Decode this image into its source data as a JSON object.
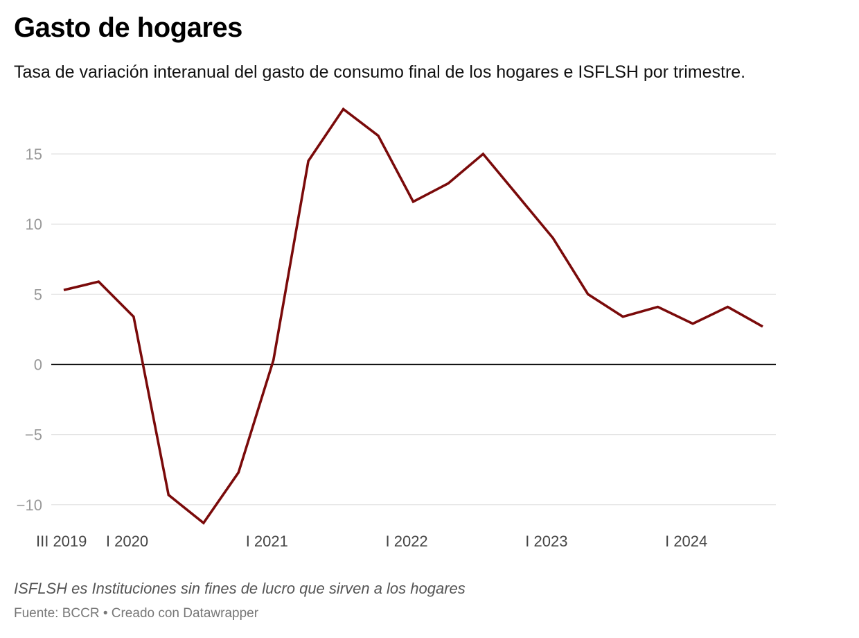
{
  "chart_data": {
    "type": "line",
    "title": "Gasto de hogares",
    "subtitle": "Tasa de variación interanual del gasto de consumo final de los hogares e ISFLSH por trimestre.",
    "xlabel": "",
    "ylabel": "",
    "ylim": [
      -11.3,
      18.5
    ],
    "yticks": [
      15,
      10,
      5,
      0,
      -5,
      -10
    ],
    "ytick_labels": [
      "15",
      "10",
      "5",
      "0",
      "−5",
      "−10"
    ],
    "x_tick_labels": [
      {
        "index": 0,
        "label": "III 2019"
      },
      {
        "index": 2,
        "label": "I 2020"
      },
      {
        "index": 6,
        "label": "I 2021"
      },
      {
        "index": 10,
        "label": "I 2022"
      },
      {
        "index": 14,
        "label": "I 2023"
      },
      {
        "index": 18,
        "label": "I 2024"
      }
    ],
    "series": [
      {
        "name": "Gasto de hogares",
        "color": "#7a0a0a",
        "x": [
          "III 2019",
          "IV 2019",
          "I 2020",
          "II 2020",
          "III 2020",
          "IV 2020",
          "I 2021",
          "II 2021",
          "III 2021",
          "IV 2021",
          "I 2022",
          "II 2022",
          "III 2022",
          "IV 2022",
          "I 2023",
          "II 2023",
          "III 2023",
          "IV 2023",
          "I 2024",
          "II 2024",
          "III 2024"
        ],
        "values": [
          5.3,
          5.9,
          3.4,
          -9.3,
          -11.3,
          -7.7,
          0.3,
          14.5,
          18.2,
          16.3,
          11.6,
          12.9,
          15.0,
          12.0,
          9.0,
          5.0,
          3.4,
          4.1,
          2.9,
          4.1,
          2.7
        ]
      }
    ],
    "grid": true,
    "legend": "none"
  },
  "footer": {
    "note": "ISFLSH es Instituciones sin fines de lucro que sirven a los hogares",
    "source": "Fuente: BCCR • Creado con Datawrapper"
  }
}
